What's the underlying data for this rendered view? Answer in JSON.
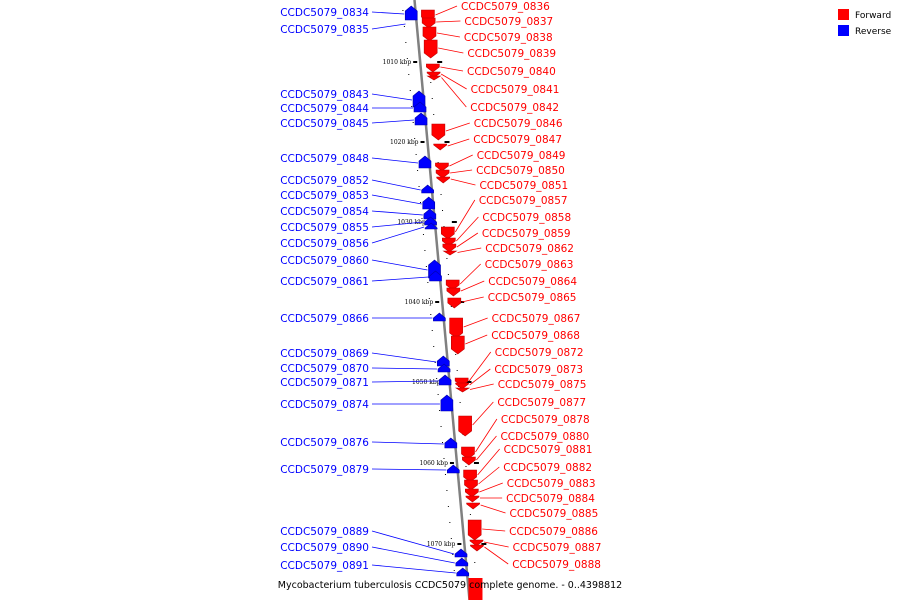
{
  "caption": "Mycobacterium tuberculosis CCDC5079 complete genome. - 0..4398812",
  "legend": [
    {
      "label": "Forward",
      "color": "#ff0000"
    },
    {
      "label": "Reverse",
      "color": "#0000ff"
    }
  ],
  "colors": {
    "forward": "#ff0000",
    "forward_dark": "#c00000",
    "reverse": "#0000ff",
    "reverse_dark": "#0000a8",
    "axis": "#808080"
  },
  "kbp_markers": [
    "1010 kbp",
    "1020 kbp",
    "1030 kbp",
    "1040 kbp",
    "1050 kbp",
    "1060 kbp",
    "1070 kbp"
  ],
  "reverse_genes": [
    "CCDC5079_0834",
    "CCDC5079_0835",
    "CCDC5079_0843",
    "CCDC5079_0844",
    "CCDC5079_0845",
    "CCDC5079_0848",
    "CCDC5079_0852",
    "CCDC5079_0853",
    "CCDC5079_0854",
    "CCDC5079_0855",
    "CCDC5079_0856",
    "CCDC5079_0860",
    "CCDC5079_0861",
    "CCDC5079_0866",
    "CCDC5079_0869",
    "CCDC5079_0870",
    "CCDC5079_0871",
    "CCDC5079_0874",
    "CCDC5079_0876",
    "CCDC5079_0879",
    "CCDC5079_0889",
    "CCDC5079_0890",
    "CCDC5079_0891"
  ],
  "forward_genes": [
    "CCDC5079_0836",
    "CCDC5079_0837",
    "CCDC5079_0838",
    "CCDC5079_0839",
    "CCDC5079_0840",
    "CCDC5079_0841",
    "CCDC5079_0842",
    "CCDC5079_0846",
    "CCDC5079_0847",
    "CCDC5079_0849",
    "CCDC5079_0850",
    "CCDC5079_0851",
    "CCDC5079_0857",
    "CCDC5079_0858",
    "CCDC5079_0859",
    "CCDC5079_0862",
    "CCDC5079_0863",
    "CCDC5079_0864",
    "CCDC5079_0865",
    "CCDC5079_0867",
    "CCDC5079_0868",
    "CCDC5079_0872",
    "CCDC5079_0873",
    "CCDC5079_0875",
    "CCDC5079_0877",
    "CCDC5079_0878",
    "CCDC5079_0880",
    "CCDC5079_0881",
    "CCDC5079_0882",
    "CCDC5079_0883",
    "CCDC5079_0884",
    "CCDC5079_0885",
    "CCDC5079_0886",
    "CCDC5079_0887",
    "CCDC5079_0888"
  ]
}
